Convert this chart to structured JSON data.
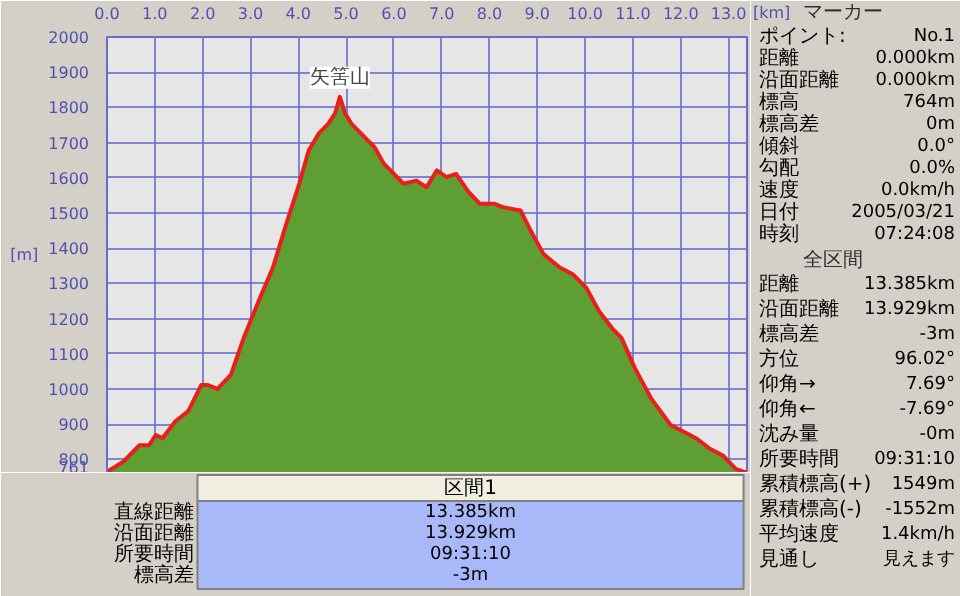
{
  "chart_data": {
    "type": "area",
    "xlabel": "[km]",
    "ylabel": "[m]",
    "x": [
      0,
      0.34,
      0.68,
      0.88,
      1.02,
      1.16,
      1.43,
      1.7,
      1.97,
      2.11,
      2.31,
      2.45,
      2.59,
      2.86,
      3.2,
      3.47,
      3.75,
      4.02,
      4.22,
      4.43,
      4.63,
      4.77,
      4.87,
      4.98,
      5.11,
      5.31,
      5.59,
      5.79,
      5.93,
      6.2,
      6.47,
      6.68,
      6.9,
      7.1,
      7.3,
      7.56,
      7.8,
      8.11,
      8.29,
      8.65,
      8.86,
      9.13,
      9.47,
      9.74,
      10.02,
      10.29,
      10.56,
      10.76,
      11.04,
      11.38,
      11.79,
      12.06,
      12.33,
      12.61,
      12.88,
      13.15,
      13.385
    ],
    "series": [
      {
        "color": "#5f9e32",
        "values": [
          764,
          793,
          840,
          840,
          869,
          860,
          908,
          937,
          1011,
          1011,
          1000,
          1020,
          1040,
          1145,
          1259,
          1345,
          1469,
          1583,
          1678,
          1726,
          1754,
          1783,
          1830,
          1783,
          1754,
          1726,
          1688,
          1640,
          1621,
          1583,
          1592,
          1573,
          1621,
          1602,
          1611,
          1560,
          1526,
          1526,
          1516,
          1507,
          1450,
          1383,
          1345,
          1326,
          1288,
          1221,
          1173,
          1145,
          1059,
          973,
          897,
          878,
          859,
          830,
          811,
          773,
          761
        ]
      }
    ],
    "xlim": [
      0,
      13.385
    ],
    "ylim": [
      761,
      2000
    ],
    "xticks": [
      {
        "value": 0,
        "label": "0.0"
      },
      {
        "value": 1,
        "label": "1.0"
      },
      {
        "value": 2,
        "label": "2.0"
      },
      {
        "value": 3,
        "label": "3.0"
      },
      {
        "value": 4,
        "label": "4.0"
      },
      {
        "value": 5,
        "label": "5.0"
      },
      {
        "value": 6,
        "label": "6.0"
      },
      {
        "value": 7,
        "label": "7.0"
      },
      {
        "value": 8,
        "label": "8.0"
      },
      {
        "value": 9,
        "label": "9.0"
      },
      {
        "value": 10,
        "label": "10.0"
      },
      {
        "value": 11,
        "label": "11.0"
      },
      {
        "value": 12,
        "label": "12.0"
      },
      {
        "value": 13,
        "label": "13.0"
      }
    ],
    "yticks": [
      761,
      800,
      900,
      1000,
      1100,
      1200,
      1300,
      1400,
      1500,
      1600,
      1700,
      1800,
      1900,
      2000
    ],
    "grid": true,
    "annotations": [
      {
        "text": "矢筈山",
        "x": 4.87,
        "y": 1830
      },
      "マーカー",
      "ポイント:",
      "No.1",
      "距離",
      "0.000km",
      "沿面距離",
      "0.000km",
      "標高",
      "764m",
      "標高差",
      "0m",
      "傾斜",
      "0.0°",
      "勾配",
      "0.0%",
      "速度",
      "0.0km/h",
      "日付",
      "2005/03/21",
      "時刻",
      "07:24:08",
      "全区間",
      "距離",
      "13.385km",
      "沿面距離",
      "13.929km",
      "標高差",
      "-3m",
      "方位",
      "96.02°",
      "仰角→",
      "7.69°",
      "仰角←",
      "-7.69°",
      "沈み量",
      "-0m",
      "所要時間",
      "09:31:10",
      "累積標高(+)",
      "1549m",
      "累積標高(-)",
      "-1552m",
      "平均速度",
      "1.4km/h",
      "見通し",
      "見えます",
      "区間1",
      "直線距離",
      "13.385km",
      "沿面距離",
      "13.929km",
      "所要時間",
      "09:31:10",
      "標高差",
      "-3m"
    ]
  }
}
